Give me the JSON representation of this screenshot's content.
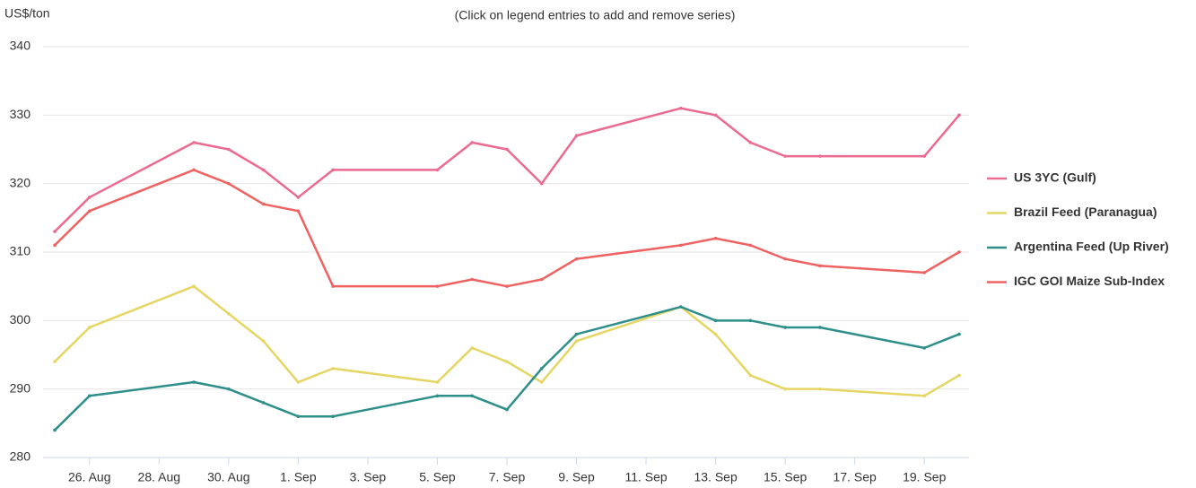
{
  "chart_data": {
    "type": "line",
    "subtitle": "(Click on legend entries to add and remove series)",
    "y_axis_label": "US$/ton",
    "x": [
      "08-25",
      "08-26",
      "08-29",
      "08-30",
      "08-31",
      "09-01",
      "09-02",
      "09-05",
      "09-06",
      "09-07",
      "09-08",
      "09-09",
      "09-12",
      "09-13",
      "09-14",
      "09-15",
      "09-16",
      "09-19",
      "09-20"
    ],
    "xlim": [
      "08-25",
      "09-20"
    ],
    "xticks": [
      {
        "value": "08-26",
        "label": "26. Aug"
      },
      {
        "value": "08-28",
        "label": "28. Aug"
      },
      {
        "value": "08-30",
        "label": "30. Aug"
      },
      {
        "value": "09-01",
        "label": "1. Sep"
      },
      {
        "value": "09-03",
        "label": "3. Sep"
      },
      {
        "value": "09-05",
        "label": "5. Sep"
      },
      {
        "value": "09-07",
        "label": "7. Sep"
      },
      {
        "value": "09-09",
        "label": "9. Sep"
      },
      {
        "value": "09-11",
        "label": "11. Sep"
      },
      {
        "value": "09-13",
        "label": "13. Sep"
      },
      {
        "value": "09-15",
        "label": "15. Sep"
      },
      {
        "value": "09-17",
        "label": "17. Sep"
      },
      {
        "value": "09-19",
        "label": "19. Sep"
      }
    ],
    "ylim": [
      280,
      340
    ],
    "yticks": [
      280,
      290,
      300,
      310,
      320,
      330,
      340
    ],
    "grid": true,
    "legend": "right",
    "series": [
      {
        "name": "US 3YC (Gulf)",
        "color": "#ea6a90",
        "values": [
          313,
          318,
          326,
          325,
          322,
          318,
          322,
          322,
          326,
          325,
          320,
          327,
          331,
          330,
          326,
          324,
          324,
          324,
          330
        ]
      },
      {
        "name": "Brazil Feed (Paranagua)",
        "color": "#e5d664",
        "values": [
          294,
          299,
          305,
          301,
          297,
          291,
          293,
          291,
          296,
          294,
          291,
          297,
          302,
          298,
          292,
          290,
          290,
          289,
          292
        ]
      },
      {
        "name": "Argentina Feed (Up River)",
        "color": "#2e8f8a",
        "values": [
          284,
          289,
          291,
          290,
          288,
          286,
          286,
          289,
          289,
          287,
          293,
          298,
          302,
          300,
          300,
          299,
          299,
          296,
          298
        ]
      },
      {
        "name": "IGC GOI Maize Sub-Index",
        "color": "#ef6262",
        "values": [
          311,
          316,
          322,
          320,
          317,
          316,
          305,
          305,
          306,
          305,
          306,
          309,
          311,
          312,
          311,
          309,
          308,
          307,
          310
        ]
      }
    ]
  }
}
